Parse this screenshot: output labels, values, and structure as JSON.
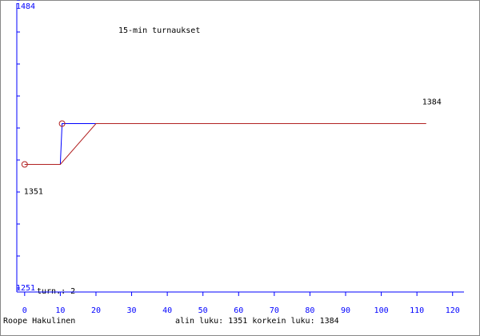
{
  "chart_data": {
    "type": "line",
    "title": "15-min turnaukset",
    "xlim": [
      -2.2,
      123.2
    ],
    "xticks": [
      0,
      10,
      20,
      30,
      40,
      50,
      60,
      70,
      80,
      90,
      100,
      110,
      120
    ],
    "ylim": [
      1251,
      1484
    ],
    "yticks": [
      1251,
      1484
    ],
    "axis_color": "#0000ff",
    "series": [
      {
        "color": "#0000ff",
        "x": [
          0,
          10,
          10.5,
          20
        ],
        "values": [
          1351,
          1351,
          1384,
          1384
        ]
      },
      {
        "color": "#b22222",
        "x": [
          0,
          10,
          20,
          112.6
        ],
        "values": [
          1351,
          1351,
          1384,
          1384
        ]
      },
      {
        "type": "scatter",
        "color": "#b22222",
        "x": [
          0,
          10.5
        ],
        "values": [
          1351,
          1384
        ]
      }
    ],
    "max_value": 1384,
    "min_value": 1351,
    "count_label": "turn.: 2",
    "author": "Roope Hakulinen",
    "summary": "alin luku: 1351  korkein luku: 1384"
  }
}
